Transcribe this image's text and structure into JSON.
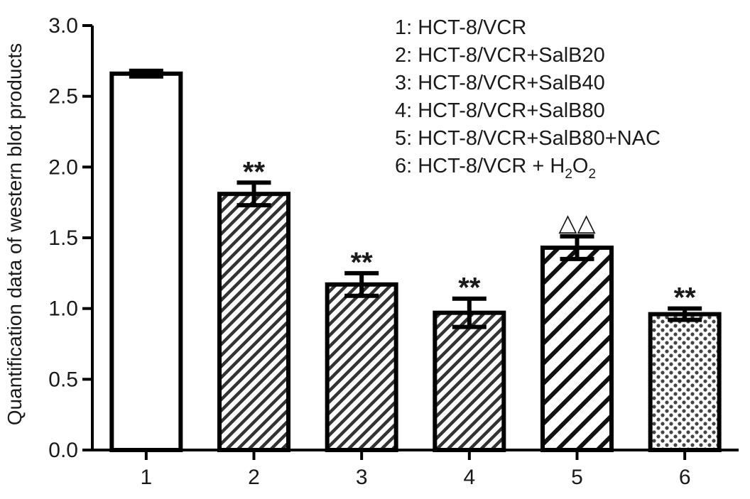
{
  "chart_data": {
    "type": "bar",
    "title": "",
    "xlabel": "",
    "ylabel": "Quantification data of western blot products",
    "ylim": [
      0,
      3.0
    ],
    "yticks": [
      0.0,
      0.5,
      1.0,
      1.5,
      2.0,
      2.5,
      3.0
    ],
    "ytick_labels": [
      "0.0",
      "0.5",
      "1.0",
      "1.5",
      "2.0",
      "2.5",
      "3.0"
    ],
    "categories": [
      "1",
      "2",
      "3",
      "4",
      "5",
      "6"
    ],
    "values": [
      2.66,
      1.81,
      1.17,
      0.97,
      1.43,
      0.96
    ],
    "errors": [
      0.02,
      0.08,
      0.08,
      0.1,
      0.08,
      0.04
    ],
    "patterns": [
      "solid-white",
      "dense-diagonal",
      "dense-diagonal",
      "dense-diagonal",
      "wide-diagonal",
      "dotted"
    ],
    "annotations": [
      "",
      "**",
      "**",
      "**",
      "△△",
      "**"
    ],
    "grid": false,
    "legend_position": "top-right",
    "legend": [
      {
        "text": "1: HCT-8/VCR"
      },
      {
        "text": "2: HCT-8/VCR+SalB20"
      },
      {
        "text": "3: HCT-8/VCR+SalB40"
      },
      {
        "text": "4: HCT-8/VCR+SalB80"
      },
      {
        "text": "5: HCT-8/VCR+SalB80+NAC"
      },
      {
        "text": "6: HCT-8/VCR + ",
        "sub1": "2",
        "mid": "O",
        "prefix": "H",
        "sub2": "2"
      }
    ]
  }
}
